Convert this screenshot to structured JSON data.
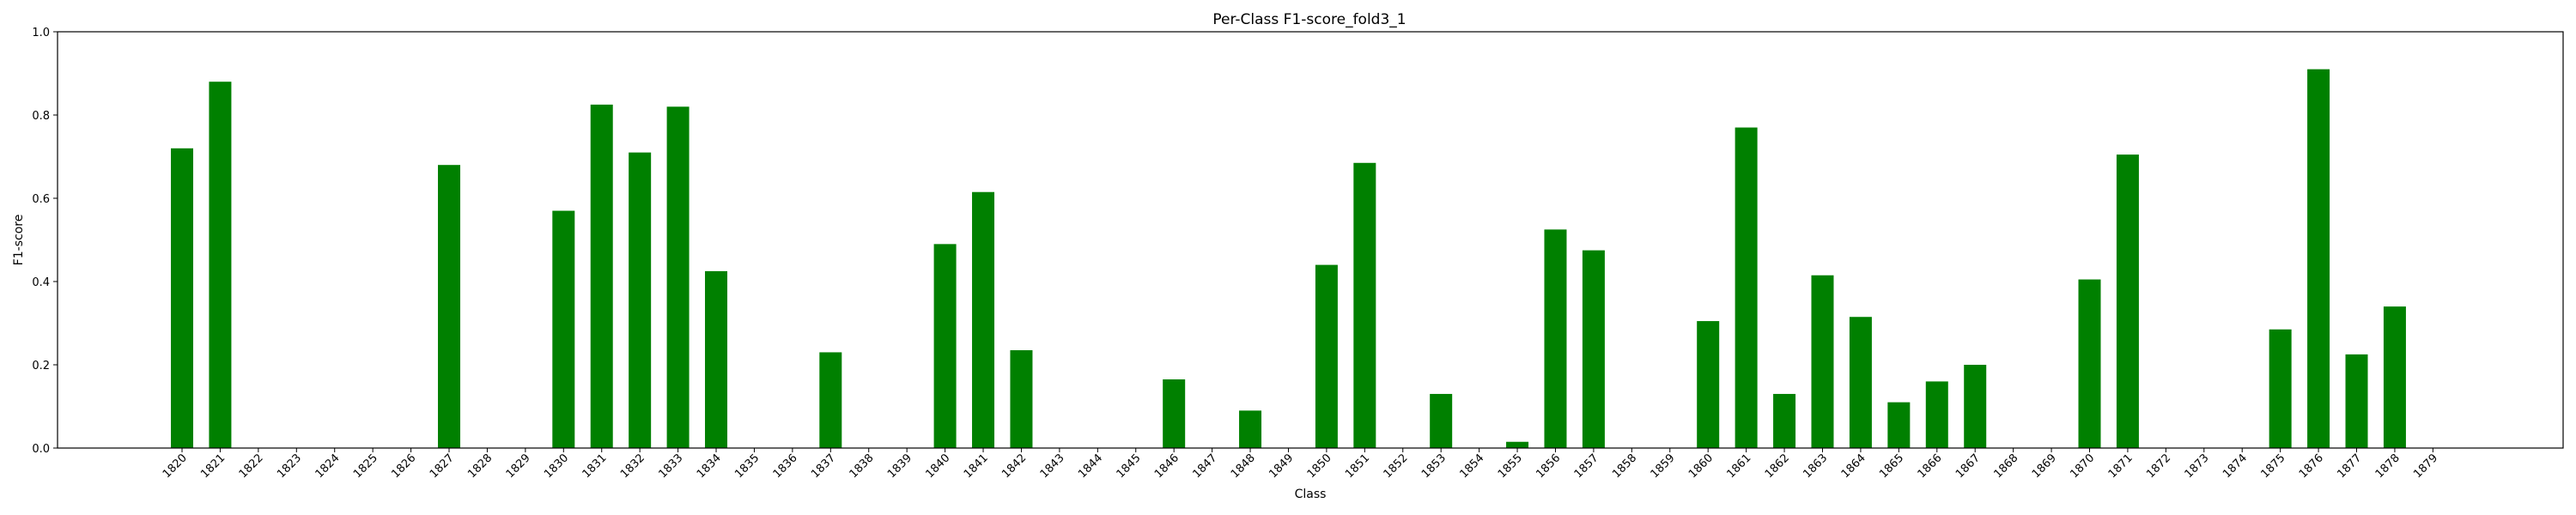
{
  "chart_data": {
    "type": "bar",
    "title": "Per-Class F1-score_fold3_1",
    "xlabel": "Class",
    "ylabel": "F1-score",
    "ylim": [
      0,
      1.0
    ],
    "yticks": [
      "0.0",
      "0.2",
      "0.4",
      "0.6",
      "0.8",
      "1.0"
    ],
    "grid": false,
    "bar_color": "#008000",
    "categories": [
      "1820",
      "1821",
      "1822",
      "1823",
      "1824",
      "1825",
      "1826",
      "1827",
      "1828",
      "1829",
      "1830",
      "1831",
      "1832",
      "1833",
      "1834",
      "1835",
      "1836",
      "1837",
      "1838",
      "1839",
      "1840",
      "1841",
      "1842",
      "1843",
      "1844",
      "1845",
      "1846",
      "1847",
      "1848",
      "1849",
      "1850",
      "1851",
      "1852",
      "1853",
      "1854",
      "1855",
      "1856",
      "1857",
      "1858",
      "1859",
      "1860",
      "1861",
      "1862",
      "1863",
      "1864",
      "1865",
      "1866",
      "1867",
      "1868",
      "1869",
      "1870",
      "1871",
      "1872",
      "1873",
      "1874",
      "1875",
      "1876",
      "1877",
      "1878",
      "1879"
    ],
    "values": [
      0.72,
      0.88,
      0,
      0,
      0,
      0,
      0,
      0.68,
      0,
      0,
      0.57,
      0.825,
      0.71,
      0.82,
      0.425,
      0,
      0,
      0.23,
      0,
      0,
      0.49,
      0.615,
      0.235,
      0,
      0,
      0,
      0.165,
      0,
      0.09,
      0,
      0.44,
      0.685,
      0,
      0.13,
      0,
      0.015,
      0.525,
      0.475,
      0,
      0,
      0.305,
      0.77,
      0.13,
      0.415,
      0.315,
      0.11,
      0.16,
      0.2,
      0,
      0,
      0.405,
      0.705,
      0,
      0,
      0,
      0.285,
      0.91,
      0.225,
      0.34,
      0
    ]
  }
}
